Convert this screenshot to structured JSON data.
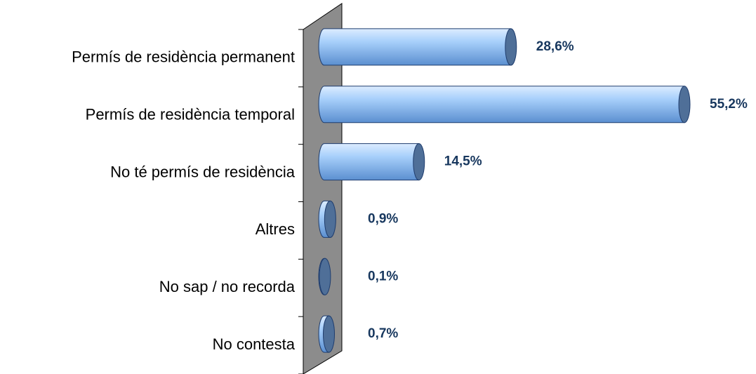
{
  "chart_data": {
    "type": "bar",
    "orientation": "horizontal",
    "categories": [
      "Permís de residència permanent",
      "Permís de residència temporal",
      "No té permís de residència",
      "Altres",
      "No sap / no recorda",
      "No contesta"
    ],
    "values": [
      28.6,
      55.2,
      14.5,
      0.9,
      0.1,
      0.7
    ],
    "value_labels": [
      "28,6%",
      "55,2%",
      "14,5%",
      "0,9%",
      "0,1%",
      "0,7%"
    ],
    "color": "#99ccff"
  }
}
